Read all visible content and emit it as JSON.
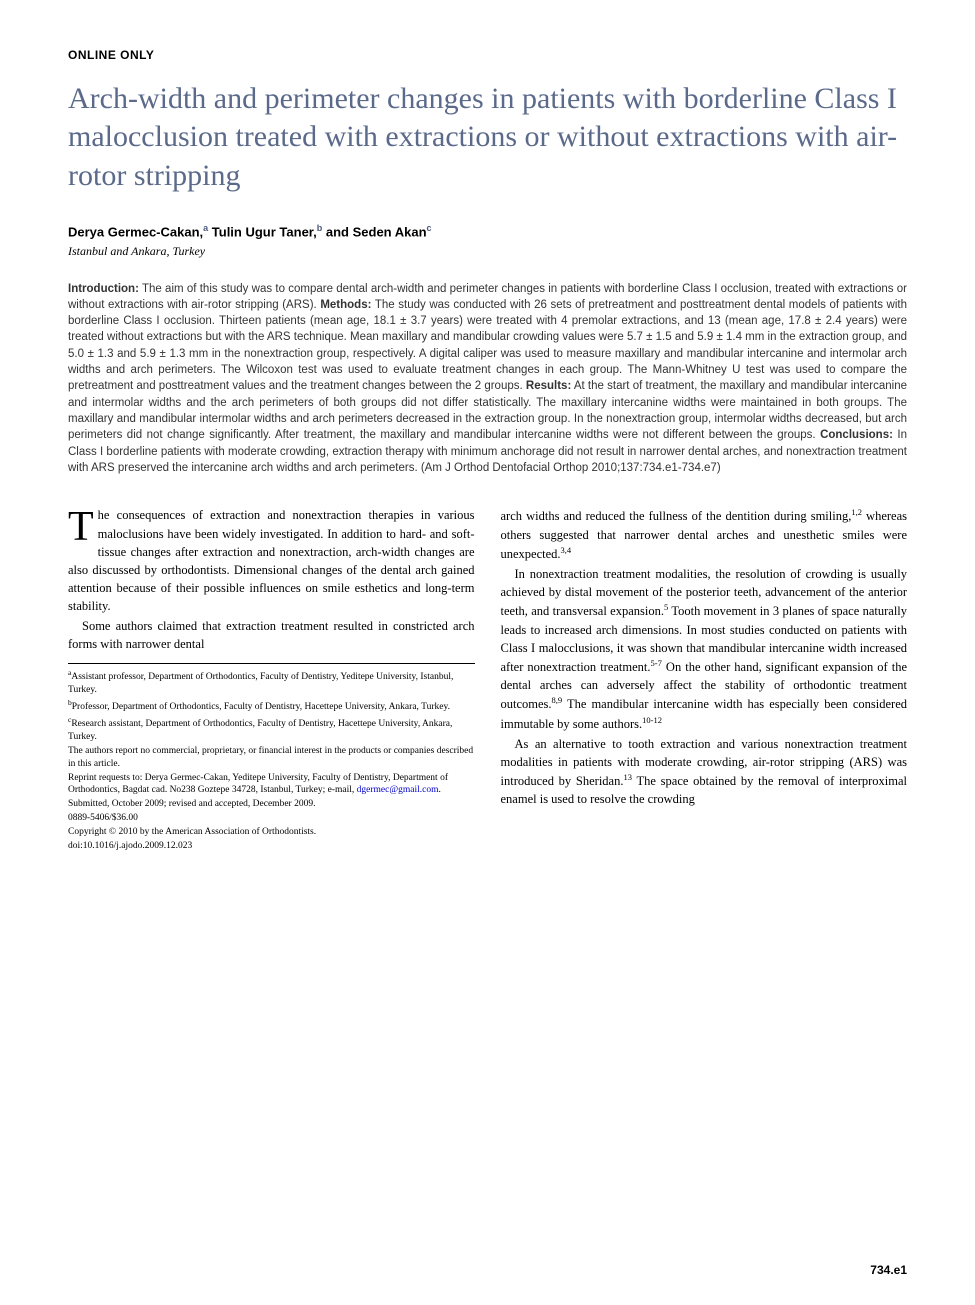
{
  "section_label": "ONLINE ONLY",
  "title": "Arch-width and perimeter changes in patients with borderline Class I malocclusion treated with extractions or without extractions with air-rotor stripping",
  "authors": [
    {
      "name": "Derya Germec-Cakan,",
      "sup": "a"
    },
    {
      "name": " Tulin Ugur Taner,",
      "sup": "b"
    },
    {
      "name": " and Seden Akan",
      "sup": "c"
    }
  ],
  "affiliation_location": "Istanbul and Ankara, Turkey",
  "abstract": {
    "intro_label": "Introduction:",
    "intro": " The aim of this study was to compare dental arch-width and perimeter changes in patients with borderline Class I occlusion, treated with extractions or without extractions with air-rotor stripping (ARS). ",
    "methods_label": "Methods:",
    "methods": " The study was conducted with 26 sets of pretreatment and posttreatment dental models of patients with borderline Class I occlusion. Thirteen patients (mean age, 18.1 ± 3.7 years) were treated with 4 premolar extractions, and 13 (mean age, 17.8 ± 2.4 years) were treated without extractions but with the ARS technique. Mean maxillary and mandibular crowding values were 5.7 ± 1.5 and 5.9 ± 1.4 mm in the extraction group, and 5.0 ± 1.3 and 5.9 ± 1.3 mm in the nonextraction group, respectively. A digital caliper was used to measure maxillary and mandibular intercanine and intermolar arch widths and arch perimeters. The Wilcoxon test was used to evaluate treatment changes in each group. The Mann-Whitney U test was used to compare the pretreatment and posttreatment values and the treatment changes between the 2 groups. ",
    "results_label": "Results:",
    "results": " At the start of treatment, the maxillary and mandibular intercanine and intermolar widths and the arch perimeters of both groups did not differ statistically. The maxillary intercanine widths were maintained in both groups. The maxillary and mandibular intermolar widths and arch perimeters decreased in the extraction group. In the nonextraction group, intermolar widths decreased, but arch perimeters did not change significantly. After treatment, the maxillary and mandibular intercanine widths were not different between the groups. ",
    "conclusions_label": "Conclusions:",
    "conclusions": " In Class I borderline patients with moderate crowding, extraction therapy with minimum anchorage did not result in narrower dental arches, and nonextraction treatment with ARS preserved the intercanine arch widths and arch perimeters. (Am J Orthod Dentofacial Orthop 2010;137:734.e1-734.e7)"
  },
  "body": {
    "col1": {
      "dropcap": "T",
      "p1": "he consequences of extraction and nonextraction therapies in various maloclusions have been widely investigated. In addition to hard- and soft-tissue changes after extraction and nonextraction, arch-width changes are also discussed by orthodontists. Dimensional changes of the dental arch gained attention because of their possible influences on smile esthetics and long-term stability.",
      "p2": "Some authors claimed that extraction treatment resulted in constricted arch forms with narrower dental"
    },
    "col2": {
      "p1_a": "arch widths and reduced the fullness of the dentition during smiling,",
      "p1_sup1": "1,2",
      "p1_b": " whereas others suggested that narrower dental arches and unesthetic smiles were unexpected.",
      "p1_sup2": "3,4",
      "p2_a": "In nonextraction treatment modalities, the resolution of crowding is usually achieved by distal movement of the posterior teeth, advancement of the anterior teeth, and transversal expansion.",
      "p2_sup1": "5",
      "p2_b": " Tooth movement in 3 planes of space naturally leads to increased arch dimensions. In most studies conducted on patients with Class I malocclusions, it was shown that mandibular intercanine width increased after nonextraction treatment.",
      "p2_sup2": "5-7",
      "p2_c": " On the other hand, significant expansion of the dental arches can adversely affect the stability of orthodontic treatment outcomes.",
      "p2_sup3": "8,9",
      "p2_d": " The mandibular intercanine width has especially been considered immutable by some authors.",
      "p2_sup4": "10-12",
      "p3_a": "As an alternative to tooth extraction and various nonextraction treatment modalities in patients with moderate crowding, air-rotor stripping (ARS) was introduced by Sheridan.",
      "p3_sup1": "13",
      "p3_b": " The space obtained by the removal of interproximal enamel is used to resolve the crowding"
    }
  },
  "footnotes": {
    "a": "Assistant professor, Department of Orthodontics, Faculty of Dentistry, Yeditepe University, Istanbul, Turkey.",
    "b": "Professor, Department of Orthodontics, Faculty of Dentistry, Hacettepe University, Ankara, Turkey.",
    "c": "Research assistant, Department of Orthodontics, Faculty of Dentistry, Hacettepe University, Ankara, Turkey.",
    "disclosure": "The authors report no commercial, proprietary, or financial interest in the products or companies described in this article.",
    "reprint": "Reprint requests to: Derya Germec-Cakan, Yeditepe University, Faculty of Dentistry, Department of Orthodontics, Bagdat cad. No238 Goztepe 34728, Istanbul, Turkey; e-mail, ",
    "email": "dgermec@gmail.com",
    "reprint_end": ".",
    "submitted": "Submitted, October 2009; revised and accepted, December 2009.",
    "issn": "0889-5406/$36.00",
    "copyright": "Copyright © 2010 by the American Association of Orthodontists.",
    "doi": "doi:10.1016/j.ajodo.2009.12.023"
  },
  "page_number": "734.e1",
  "colors": {
    "title": "#5b6a8a",
    "text": "#000000",
    "background": "#ffffff",
    "link": "#0000cc"
  },
  "typography": {
    "title_fontsize": 30,
    "body_fontsize": 12.5,
    "abstract_fontsize": 11.5,
    "footnote_fontsize": 9.5,
    "dropcap_fontsize": 42
  }
}
